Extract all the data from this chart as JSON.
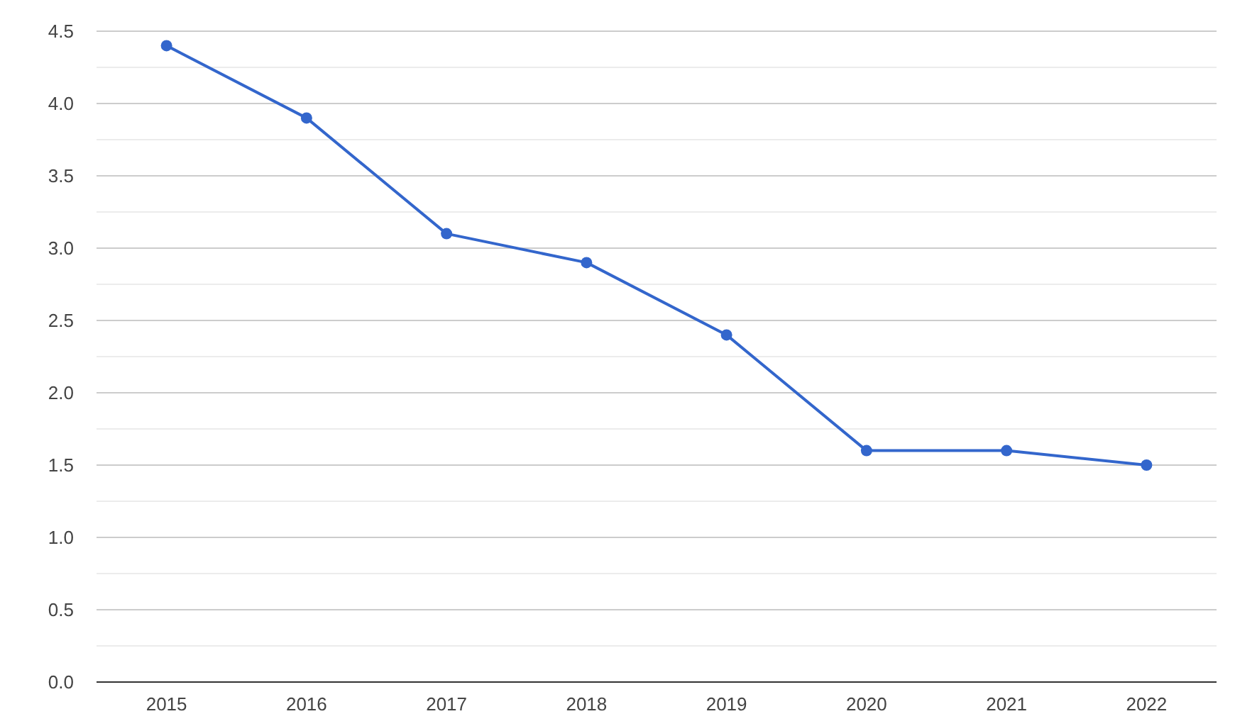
{
  "chart_data": {
    "type": "line",
    "categories": [
      "2015",
      "2016",
      "2017",
      "2018",
      "2019",
      "2020",
      "2021",
      "2022"
    ],
    "series": [
      {
        "color": "#3366cc",
        "values": [
          4.4,
          3.9,
          3.1,
          2.9,
          2.4,
          1.6,
          1.6,
          1.5
        ]
      }
    ],
    "ylim": [
      0,
      4.5
    ],
    "yticks": [
      {
        "value": 0,
        "label": "0.0"
      },
      {
        "value": 0.25,
        "label": null
      },
      {
        "value": 0.5,
        "label": "0.5"
      },
      {
        "value": 0.75,
        "label": null
      },
      {
        "value": 1,
        "label": "1.0"
      },
      {
        "value": 1.25,
        "label": null
      },
      {
        "value": 1.5,
        "label": "1.5"
      },
      {
        "value": 1.75,
        "label": null
      },
      {
        "value": 2,
        "label": "2.0"
      },
      {
        "value": 2.25,
        "label": null
      },
      {
        "value": 2.5,
        "label": "2.5"
      },
      {
        "value": 2.75,
        "label": null
      },
      {
        "value": 3,
        "label": "3.0"
      },
      {
        "value": 3.25,
        "label": null
      },
      {
        "value": 3.5,
        "label": "3.5"
      },
      {
        "value": 3.75,
        "label": null
      },
      {
        "value": 4,
        "label": "4.0"
      },
      {
        "value": 4.25,
        "label": null
      },
      {
        "value": 4.5,
        "label": "4.5"
      }
    ],
    "grid": "y",
    "marker": "circle",
    "line_style": "solid"
  }
}
